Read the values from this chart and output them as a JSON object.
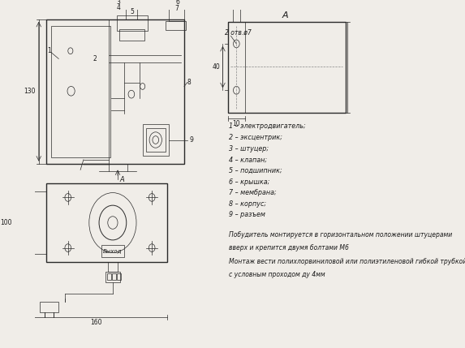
{
  "background_color": "#f0ede8",
  "line_color": "#2a2a2a",
  "legend_items": [
    "1 – электродвигатель;",
    "2 – эксцентрик;",
    "3 – штуцер;",
    "4 – клапан;",
    "5 – подшипник;",
    "6 – крышка;",
    "7 – мембрана;",
    "8 – корпус;",
    "9 – разъем"
  ],
  "notes": [
    "Побудитель монтируется в горизонтальном положении штуцерами",
    "вверх и крепится двумя болтами М6",
    "Монтаж вести полихлорвиниловой или полиэтиленовой гибкой трубкой",
    "с условным проходом ду 4мм"
  ],
  "dim_130": "130",
  "dim_100": "100",
  "dim_160": "160",
  "dim_40": "40",
  "dim_10": "10",
  "section_A": "A",
  "dim_2otv": "2 отв.ø7"
}
